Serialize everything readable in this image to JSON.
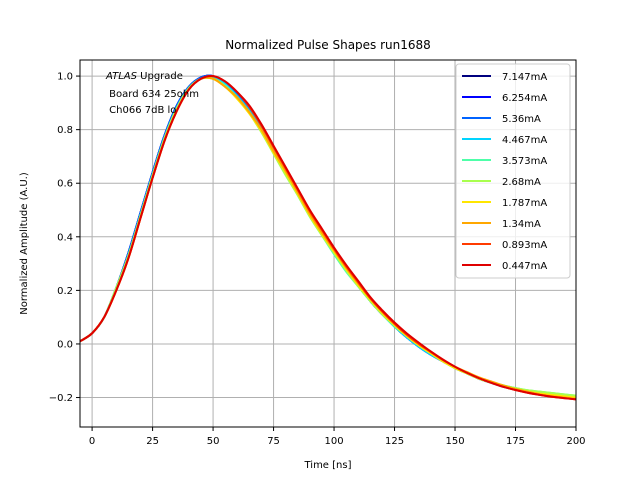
{
  "chart_data": {
    "type": "line",
    "title": "Normalized Pulse Shapes run1688",
    "xlabel": "Time [ns]",
    "ylabel": "Normalized Amplitude (A.U.)",
    "xlim": [
      -5,
      200
    ],
    "ylim": [
      -0.31,
      1.06
    ],
    "xticks": [
      0,
      25,
      50,
      75,
      100,
      125,
      150,
      175,
      200
    ],
    "xtick_labels": [
      "0",
      "25",
      "50",
      "75",
      "100",
      "125",
      "150",
      "175",
      "200"
    ],
    "yticks": [
      -0.2,
      0.0,
      0.2,
      0.4,
      0.6,
      0.8,
      1.0
    ],
    "ytick_labels": [
      "−0.2",
      "0.0",
      "0.2",
      "0.4",
      "0.6",
      "0.8",
      "1.0"
    ],
    "grid": true,
    "legend_position": "top-right",
    "annotation": {
      "italic_part": "ATLAS",
      "line1_rest": " Upgrade",
      "line2": " Board 634 25ohm",
      "line3": " Ch066 7dB lo"
    },
    "x": [
      -5,
      0,
      5,
      10,
      15,
      20,
      25,
      30,
      35,
      40,
      45,
      50,
      55,
      60,
      65,
      70,
      75,
      80,
      85,
      90,
      95,
      100,
      105,
      110,
      115,
      120,
      125,
      130,
      135,
      140,
      145,
      150,
      155,
      160,
      165,
      170,
      175,
      180,
      185,
      190,
      195,
      200
    ],
    "series": [
      {
        "name": "7.147mA",
        "color": "#00007f",
        "values": [
          0.01,
          0.04,
          0.1,
          0.21,
          0.34,
          0.49,
          0.64,
          0.78,
          0.89,
          0.96,
          0.995,
          1.0,
          0.975,
          0.93,
          0.875,
          0.805,
          0.725,
          0.645,
          0.565,
          0.485,
          0.415,
          0.345,
          0.28,
          0.22,
          0.16,
          0.11,
          0.065,
          0.025,
          -0.01,
          -0.04,
          -0.065,
          -0.09,
          -0.11,
          -0.13,
          -0.145,
          -0.16,
          -0.17,
          -0.18,
          -0.185,
          -0.19,
          -0.195,
          -0.2
        ]
      },
      {
        "name": "6.254mA",
        "color": "#0000ff",
        "values": [
          0.01,
          0.04,
          0.1,
          0.21,
          0.34,
          0.49,
          0.64,
          0.78,
          0.89,
          0.96,
          0.995,
          1.0,
          0.975,
          0.93,
          0.875,
          0.805,
          0.725,
          0.645,
          0.565,
          0.485,
          0.415,
          0.345,
          0.28,
          0.22,
          0.16,
          0.11,
          0.065,
          0.025,
          -0.01,
          -0.04,
          -0.065,
          -0.09,
          -0.11,
          -0.13,
          -0.145,
          -0.16,
          -0.17,
          -0.18,
          -0.185,
          -0.19,
          -0.195,
          -0.2
        ]
      },
      {
        "name": "5.36mA",
        "color": "#0063ff",
        "values": [
          0.01,
          0.04,
          0.1,
          0.21,
          0.34,
          0.49,
          0.64,
          0.78,
          0.89,
          0.96,
          0.995,
          1.0,
          0.975,
          0.93,
          0.875,
          0.805,
          0.725,
          0.645,
          0.565,
          0.485,
          0.415,
          0.345,
          0.28,
          0.22,
          0.16,
          0.11,
          0.065,
          0.025,
          -0.01,
          -0.04,
          -0.065,
          -0.09,
          -0.11,
          -0.13,
          -0.145,
          -0.16,
          -0.17,
          -0.18,
          -0.185,
          -0.19,
          -0.195,
          -0.2
        ]
      },
      {
        "name": "4.467mA",
        "color": "#00d4ff",
        "values": [
          0.01,
          0.04,
          0.1,
          0.21,
          0.33,
          0.48,
          0.63,
          0.77,
          0.88,
          0.955,
          0.99,
          0.995,
          0.97,
          0.925,
          0.87,
          0.8,
          0.72,
          0.64,
          0.56,
          0.48,
          0.41,
          0.34,
          0.275,
          0.215,
          0.16,
          0.11,
          0.065,
          0.025,
          -0.01,
          -0.04,
          -0.065,
          -0.09,
          -0.11,
          -0.13,
          -0.145,
          -0.155,
          -0.165,
          -0.175,
          -0.18,
          -0.185,
          -0.19,
          -0.195
        ]
      },
      {
        "name": "3.573mA",
        "color": "#4effa9",
        "values": [
          0.01,
          0.04,
          0.1,
          0.21,
          0.33,
          0.48,
          0.63,
          0.77,
          0.88,
          0.955,
          0.99,
          0.99,
          0.965,
          0.92,
          0.865,
          0.795,
          0.715,
          0.635,
          0.555,
          0.475,
          0.405,
          0.335,
          0.27,
          0.215,
          0.16,
          0.11,
          0.065,
          0.03,
          -0.005,
          -0.035,
          -0.065,
          -0.09,
          -0.11,
          -0.128,
          -0.143,
          -0.155,
          -0.165,
          -0.173,
          -0.178,
          -0.183,
          -0.188,
          -0.193
        ]
      },
      {
        "name": "2.68mA",
        "color": "#a9ff4e",
        "values": [
          0.01,
          0.04,
          0.1,
          0.21,
          0.33,
          0.48,
          0.63,
          0.77,
          0.88,
          0.955,
          0.99,
          0.99,
          0.96,
          0.915,
          0.86,
          0.79,
          0.71,
          0.63,
          0.555,
          0.475,
          0.405,
          0.34,
          0.275,
          0.215,
          0.16,
          0.11,
          0.07,
          0.03,
          -0.005,
          -0.035,
          -0.065,
          -0.09,
          -0.11,
          -0.128,
          -0.143,
          -0.155,
          -0.165,
          -0.173,
          -0.178,
          -0.183,
          -0.188,
          -0.193
        ]
      },
      {
        "name": "1.787mA",
        "color": "#ffe600",
        "values": [
          0.01,
          0.04,
          0.1,
          0.2,
          0.32,
          0.47,
          0.62,
          0.76,
          0.87,
          0.95,
          0.99,
          0.99,
          0.96,
          0.915,
          0.86,
          0.795,
          0.715,
          0.64,
          0.56,
          0.48,
          0.41,
          0.345,
          0.28,
          0.22,
          0.165,
          0.115,
          0.07,
          0.03,
          -0.005,
          -0.035,
          -0.065,
          -0.09,
          -0.11,
          -0.13,
          -0.145,
          -0.158,
          -0.168,
          -0.178,
          -0.185,
          -0.19,
          -0.195,
          -0.2
        ]
      },
      {
        "name": "1.34mA",
        "color": "#ffa700",
        "values": [
          0.01,
          0.04,
          0.1,
          0.2,
          0.32,
          0.47,
          0.62,
          0.76,
          0.87,
          0.95,
          0.99,
          0.99,
          0.96,
          0.92,
          0.865,
          0.8,
          0.72,
          0.645,
          0.565,
          0.485,
          0.415,
          0.35,
          0.285,
          0.225,
          0.17,
          0.12,
          0.075,
          0.035,
          0.0,
          -0.03,
          -0.06,
          -0.085,
          -0.105,
          -0.125,
          -0.14,
          -0.155,
          -0.168,
          -0.178,
          -0.188,
          -0.195,
          -0.2,
          -0.205
        ]
      },
      {
        "name": "0.893mA",
        "color": "#ff3b00",
        "values": [
          0.01,
          0.04,
          0.1,
          0.2,
          0.32,
          0.47,
          0.62,
          0.76,
          0.87,
          0.95,
          0.99,
          1.0,
          0.98,
          0.94,
          0.885,
          0.815,
          0.735,
          0.655,
          0.575,
          0.495,
          0.425,
          0.355,
          0.29,
          0.23,
          0.17,
          0.12,
          0.075,
          0.035,
          0.0,
          -0.03,
          -0.06,
          -0.085,
          -0.108,
          -0.128,
          -0.145,
          -0.16,
          -0.172,
          -0.182,
          -0.19,
          -0.197,
          -0.202,
          -0.207
        ]
      },
      {
        "name": "0.447mA",
        "color": "#df0000",
        "values": [
          0.01,
          0.04,
          0.1,
          0.2,
          0.32,
          0.47,
          0.62,
          0.76,
          0.87,
          0.95,
          0.99,
          1.0,
          0.98,
          0.94,
          0.89,
          0.82,
          0.74,
          0.66,
          0.58,
          0.5,
          0.43,
          0.36,
          0.295,
          0.235,
          0.175,
          0.125,
          0.08,
          0.04,
          0.005,
          -0.028,
          -0.058,
          -0.085,
          -0.108,
          -0.128,
          -0.145,
          -0.16,
          -0.172,
          -0.182,
          -0.19,
          -0.197,
          -0.202,
          -0.207
        ]
      }
    ]
  }
}
